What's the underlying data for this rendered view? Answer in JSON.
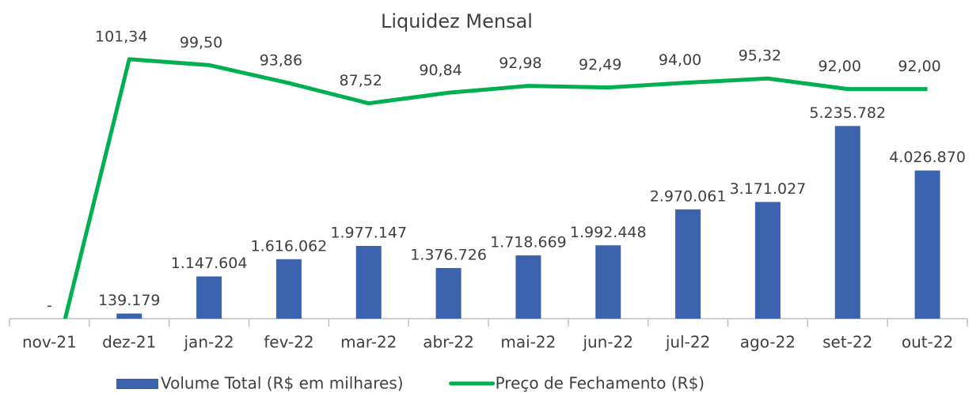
{
  "chart_data": {
    "type": "bar_line",
    "title": "Liquidez Mensal",
    "categories": [
      "nov-21",
      "dez-21",
      "jan-22",
      "fev-22",
      "mar-22",
      "abr-22",
      "mai-22",
      "jun-22",
      "jul-22",
      "ago-22",
      "set-22",
      "out-22"
    ],
    "series": [
      {
        "name": "Volume Total (R$ em milhares)",
        "type": "bar",
        "color": "#3a62ad",
        "values": [
          0,
          139179,
          1147604,
          1616062,
          1977147,
          1376726,
          1718669,
          1992448,
          2970061,
          3171027,
          5235782,
          4026870
        ],
        "value_labels": [
          "-",
          "139.179",
          "1.147.604",
          "1.616.062",
          "1.977.147",
          "1.376.726",
          "1.718.669",
          "1.992.448",
          "2.970.061",
          "3.171.027",
          "5.235.782",
          "4.026.870"
        ]
      },
      {
        "name": "Preço de Fechamento (R$)",
        "type": "line",
        "axis": "y2",
        "color": "#00b050",
        "values": [
          0,
          101.34,
          99.5,
          93.86,
          87.52,
          90.84,
          92.98,
          92.49,
          94.0,
          95.32,
          92.0,
          92.0
        ],
        "value_labels": [
          null,
          "101,34",
          "99,50",
          "93,86",
          "87,52",
          "90,84",
          "92,98",
          "92,49",
          "94,00",
          "95,32",
          "92,00",
          "92,00"
        ]
      }
    ],
    "ylim": [
      0,
      7800000
    ],
    "y2lim": [
      20,
      110
    ],
    "legend": "bottom"
  }
}
